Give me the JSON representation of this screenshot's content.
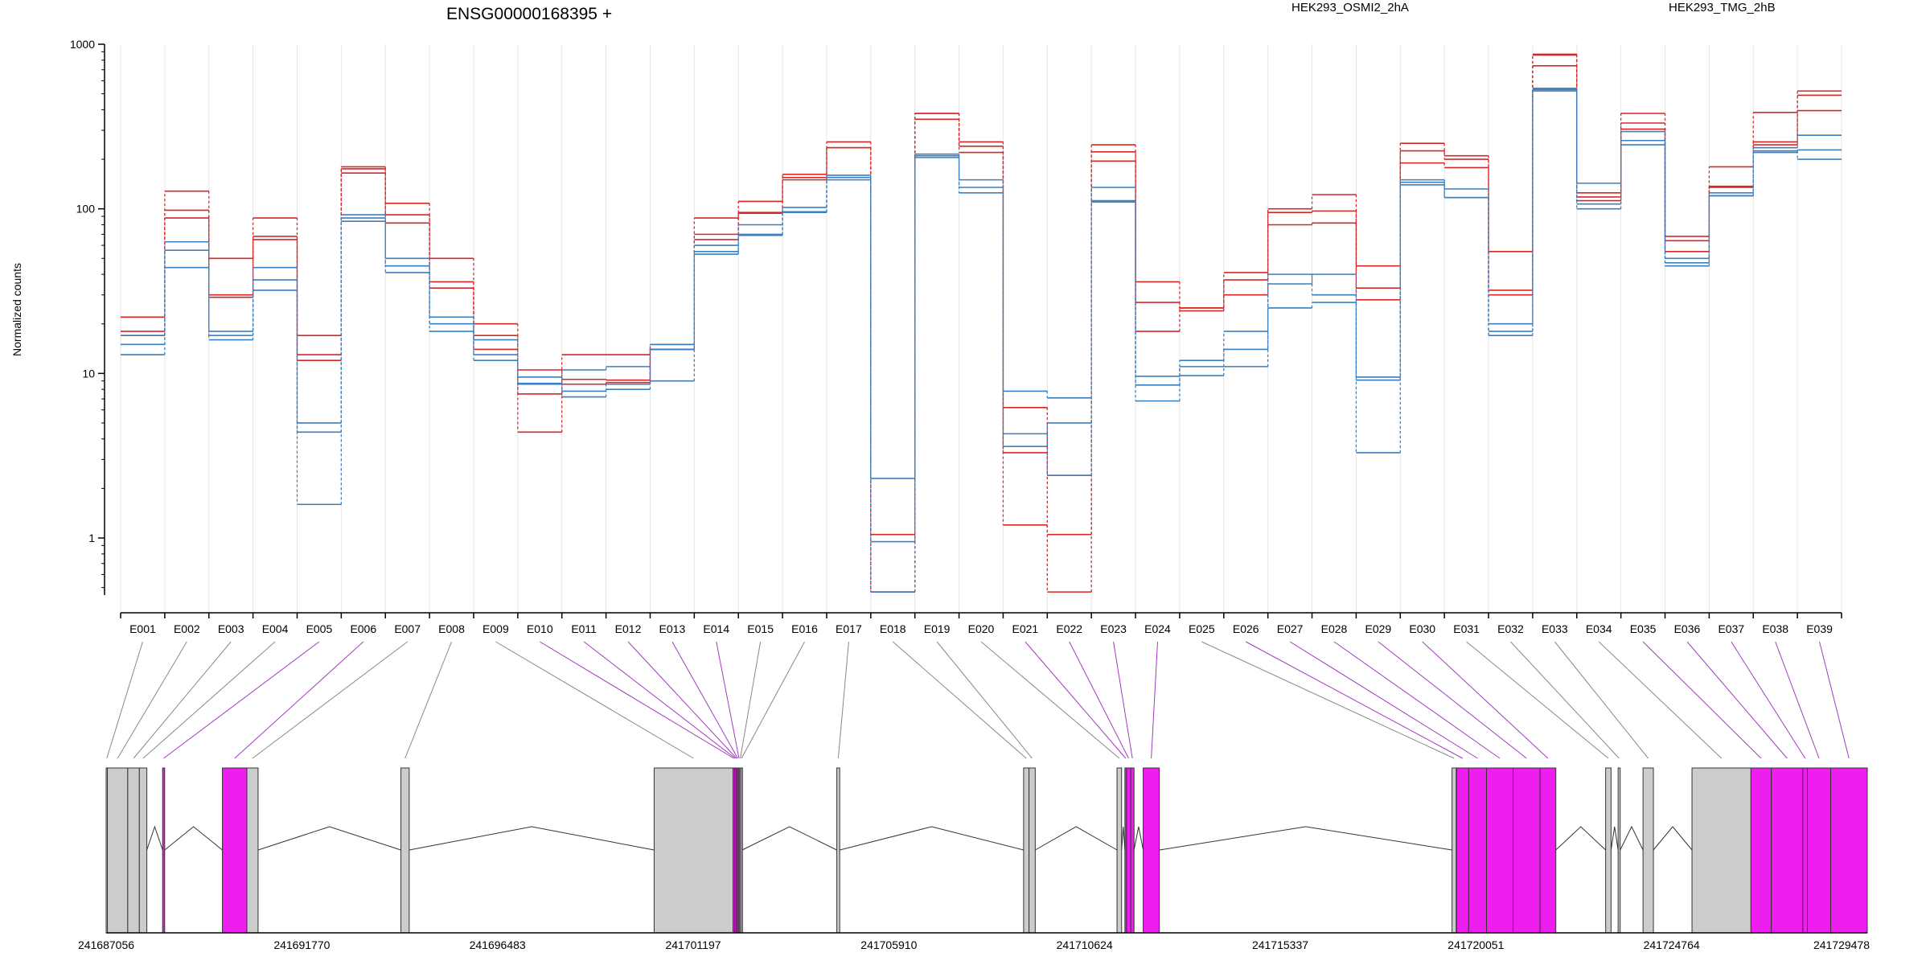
{
  "chart_data": {
    "type": "line",
    "title": "ENSG00000168395 +",
    "ylabel": "Normalized counts",
    "xlabel": "",
    "yscale": "log",
    "ylim": [
      0.45,
      1000
    ],
    "yticks": [
      "1000",
      "100",
      "10",
      "1"
    ],
    "grid": true,
    "legend_placement": "top",
    "legend": [
      {
        "name": "HEK293_OSMI2_2hA",
        "color": "#d62728"
      },
      {
        "name": "HEK293_TMG_2hB",
        "color": "#3a7fbf"
      }
    ],
    "categories": [
      "E001",
      "E002",
      "E003",
      "E004",
      "E005",
      "E006",
      "E007",
      "E008",
      "E009",
      "E010",
      "E011",
      "E012",
      "E013",
      "E014",
      "E015",
      "E016",
      "E017",
      "E018",
      "E019",
      "E020",
      "E021",
      "E022",
      "E023",
      "E024",
      "E025",
      "E026",
      "E027",
      "E028",
      "E029",
      "E030",
      "E031",
      "E032",
      "E033",
      "E034",
      "E035",
      "E036",
      "E037",
      "E038",
      "E039"
    ],
    "series": [
      {
        "group": 0,
        "values": [
          18,
          98,
          30,
          68,
          17,
          175,
          92,
          36,
          17,
          10.5,
          8.6,
          8.8,
          15,
          70,
          95,
          155,
          255,
          1.05,
          380,
          255,
          6.2,
          2.4,
          245,
          27,
          24,
          41,
          95,
          97,
          33,
          225,
          210,
          32,
          870,
          125,
          380,
          68,
          135,
          255,
          520
        ]
      },
      {
        "group": 0,
        "values": [
          22,
          128,
          29,
          88,
          13,
          165,
          108,
          50,
          20,
          7.5,
          9.2,
          9.1,
          14,
          88,
          111,
          162,
          235,
          0.47,
          350,
          240,
          3.3,
          1.05,
          195,
          36,
          25,
          37,
          100,
          122,
          45,
          190,
          178,
          55,
          860,
          112,
          332,
          64,
          180,
          385,
          490
        ]
      },
      {
        "group": 0,
        "values": [
          17,
          88,
          50,
          65,
          12,
          180,
          82,
          33,
          14,
          4.4,
          13,
          13,
          14,
          65,
          94,
          150,
          235,
          0.47,
          380,
          220,
          1.2,
          0.47,
          222,
          18,
          25,
          30,
          80,
          82,
          28,
          250,
          200,
          30,
          740,
          118,
          305,
          55,
          137,
          245,
          395
        ]
      },
      {
        "group": 1,
        "values": [
          15,
          63,
          17,
          37,
          5,
          88,
          45,
          22,
          16,
          9.5,
          7.8,
          8.6,
          15,
          60,
          80,
          102,
          155,
          2.3,
          210,
          150,
          7.8,
          7.1,
          135,
          9.6,
          12,
          18,
          35,
          40,
          9.5,
          140,
          132,
          20,
          540,
          107,
          295,
          50,
          125,
          235,
          280
        ]
      },
      {
        "group": 1,
        "values": [
          13,
          56,
          18,
          44,
          1.6,
          92,
          50,
          18,
          13,
          8.6,
          10.5,
          11,
          9,
          55,
          70,
          95,
          150,
          0.95,
          215,
          135,
          4.3,
          2.4,
          112,
          8.5,
          11,
          14,
          40,
          30,
          3.3,
          145,
          117,
          17,
          520,
          143,
          260,
          47,
          120,
          225,
          200
        ]
      },
      {
        "group": 1,
        "values": [
          17,
          44,
          16,
          32,
          4.4,
          84,
          41,
          20,
          12,
          8.7,
          7.2,
          8,
          14,
          53,
          69,
          96,
          160,
          0.47,
          205,
          125,
          3.6,
          5,
          110,
          6.8,
          9.7,
          11,
          25,
          27,
          9.1,
          150,
          117,
          18,
          530,
          100,
          245,
          45,
          120,
          220,
          228
        ]
      }
    ],
    "genomic_axis": {
      "range": [
        241687056,
        241729478
      ],
      "ticks": [
        "241687056",
        "241691770",
        "241696483",
        "241701197",
        "241705910",
        "241710624",
        "241715337",
        "241720051",
        "241724764",
        "241729478"
      ]
    },
    "exon_regions": [
      {
        "id": "E001",
        "start": 241687056,
        "end": 241687086,
        "highlight": false
      },
      {
        "id": "E002",
        "start": 241687086,
        "end": 241687576,
        "highlight": false
      },
      {
        "id": "E003",
        "start": 241687576,
        "end": 241687856,
        "highlight": false
      },
      {
        "id": "E004",
        "start": 241687856,
        "end": 241688036,
        "highlight": false
      },
      {
        "id": "E005",
        "start": 241688416,
        "end": 241688466,
        "highlight": true
      },
      {
        "id": "E006",
        "start": 241689856,
        "end": 241690446,
        "highlight": true
      },
      {
        "id": "E007",
        "start": 241690446,
        "end": 241690716,
        "highlight": false
      },
      {
        "id": "E008",
        "start": 241694156,
        "end": 241694356,
        "highlight": false
      },
      {
        "id": "E009",
        "start": 241700256,
        "end": 241702156,
        "highlight": false
      },
      {
        "id": "E010",
        "start": 241702156,
        "end": 241702196,
        "highlight": true
      },
      {
        "id": "E011",
        "start": 241702196,
        "end": 241702226,
        "highlight": true
      },
      {
        "id": "E012",
        "start": 241702226,
        "end": 241702256,
        "highlight": true
      },
      {
        "id": "E013",
        "start": 241702256,
        "end": 241702286,
        "highlight": true
      },
      {
        "id": "E014",
        "start": 241702286,
        "end": 241702316,
        "highlight": true
      },
      {
        "id": "E015",
        "start": 241702316,
        "end": 241702346,
        "highlight": false
      },
      {
        "id": "E016",
        "start": 241702346,
        "end": 241702376,
        "highlight": false
      },
      {
        "id": "E017",
        "start": 241704656,
        "end": 241704726,
        "highlight": false
      },
      {
        "id": "E018",
        "start": 241709156,
        "end": 241709286,
        "highlight": false
      },
      {
        "id": "E019",
        "start": 241709286,
        "end": 241709436,
        "highlight": false
      },
      {
        "id": "E020",
        "start": 241711406,
        "end": 241711516,
        "highlight": false
      },
      {
        "id": "E021",
        "start": 241711596,
        "end": 241711636,
        "highlight": true
      },
      {
        "id": "E022",
        "start": 241711636,
        "end": 241711736,
        "highlight": true
      },
      {
        "id": "E023",
        "start": 241711736,
        "end": 241711816,
        "highlight": true
      },
      {
        "id": "E024",
        "start": 241712036,
        "end": 241712426,
        "highlight": true
      },
      {
        "id": "E025",
        "start": 241719476,
        "end": 241719576,
        "highlight": false
      },
      {
        "id": "E026",
        "start": 241719586,
        "end": 241719876,
        "highlight": true
      },
      {
        "id": "E027",
        "start": 241719876,
        "end": 241720306,
        "highlight": true
      },
      {
        "id": "E028",
        "start": 241720306,
        "end": 241720946,
        "highlight": true
      },
      {
        "id": "E029",
        "start": 241720946,
        "end": 241721596,
        "highlight": true
      },
      {
        "id": "E030",
        "start": 241721596,
        "end": 241721976,
        "highlight": true
      },
      {
        "id": "E031",
        "start": 241723176,
        "end": 241723306,
        "highlight": false
      },
      {
        "id": "E032",
        "start": 241723476,
        "end": 241723526,
        "highlight": false
      },
      {
        "id": "E033",
        "start": 241724076,
        "end": 241724326,
        "highlight": false
      },
      {
        "id": "E034",
        "start": 241725256,
        "end": 241726676,
        "highlight": false
      },
      {
        "id": "E035",
        "start": 241726676,
        "end": 241727166,
        "highlight": true
      },
      {
        "id": "E036",
        "start": 241727166,
        "end": 241727926,
        "highlight": true
      },
      {
        "id": "E037",
        "start": 241727926,
        "end": 241728036,
        "highlight": true
      },
      {
        "id": "E038",
        "start": 241728036,
        "end": 241728596,
        "highlight": true
      },
      {
        "id": "E039",
        "start": 241728596,
        "end": 241729478,
        "highlight": true
      }
    ],
    "colors": {
      "highlight_exon": "#ee1fee",
      "exon": "#cccccc",
      "connector": "#888888",
      "connector_highlight": "#a13bbf",
      "grid": "#e6e6e6"
    }
  }
}
